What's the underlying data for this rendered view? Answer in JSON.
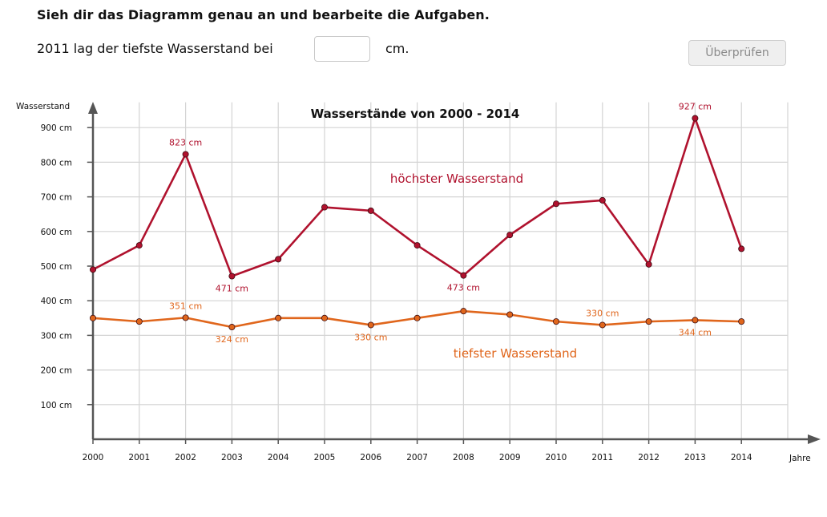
{
  "header": {
    "instruction": "Sieh dir das Diagramm genau an und bearbeite die Aufgaben.",
    "question": "2011 lag der tiefste Wasserstand bei",
    "answer_value": "",
    "unit": "cm.",
    "check_label": "Überprüfen"
  },
  "colors": {
    "high": "#b0122e",
    "low": "#e0661c",
    "grid": "#d4d4d4",
    "axis": "#555555"
  },
  "chart_data": {
    "type": "line",
    "title": "Wasserstände von 2000 - 2014",
    "ylabel": "Wasserstand",
    "xlabel": "Jahre",
    "x": [
      "2000",
      "2001",
      "2002",
      "2003",
      "2004",
      "2005",
      "2006",
      "2007",
      "2008",
      "2009",
      "2010",
      "2011",
      "2012",
      "2013",
      "2014"
    ],
    "ylim": [
      0,
      950
    ],
    "yticks": [
      {
        "value": 100,
        "label": "100 cm"
      },
      {
        "value": 200,
        "label": "200 cm"
      },
      {
        "value": 300,
        "label": "300 cm"
      },
      {
        "value": 400,
        "label": "400 cm"
      },
      {
        "value": 500,
        "label": "500 cm"
      },
      {
        "value": 600,
        "label": "600 cm"
      },
      {
        "value": 700,
        "label": "700 cm"
      },
      {
        "value": 800,
        "label": "800 cm"
      },
      {
        "value": 900,
        "label": "900 cm"
      }
    ],
    "grid": true,
    "series": [
      {
        "key": "high",
        "name": "höchster Wasserstand",
        "values": [
          490,
          560,
          823,
          471,
          520,
          670,
          660,
          560,
          473,
          590,
          680,
          690,
          505,
          927,
          550
        ]
      },
      {
        "key": "low",
        "name": "tiefster Wasserstand",
        "values": [
          350,
          340,
          351,
          324,
          350,
          350,
          330,
          350,
          370,
          360,
          340,
          330,
          340,
          344,
          340
        ]
      }
    ],
    "annotations": [
      {
        "series": "high",
        "index": 2,
        "text": "823 cm",
        "pos": "above"
      },
      {
        "series": "high",
        "index": 3,
        "text": "471 cm",
        "pos": "below"
      },
      {
        "series": "high",
        "index": 8,
        "text": "473 cm",
        "pos": "below"
      },
      {
        "series": "high",
        "index": 13,
        "text": "927 cm",
        "pos": "above"
      },
      {
        "series": "low",
        "index": 2,
        "text": "351 cm",
        "pos": "above"
      },
      {
        "series": "low",
        "index": 3,
        "text": "324 cm",
        "pos": "below"
      },
      {
        "series": "low",
        "index": 6,
        "text": "330 cm",
        "pos": "below"
      },
      {
        "series": "low",
        "index": 11,
        "text": "330 cm",
        "pos": "above"
      },
      {
        "series": "low",
        "index": 13,
        "text": "344 cm",
        "pos": "below"
      }
    ]
  }
}
